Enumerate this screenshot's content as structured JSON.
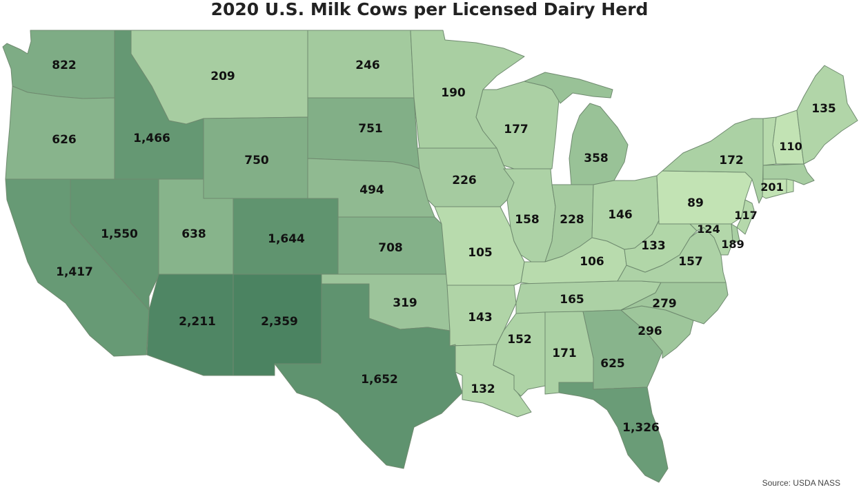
{
  "title": "2020 U.S. Milk Cows per Licensed Dairy Herd",
  "source": "Source: USDA NASS",
  "colors": {
    "scale_low": "#c2e3b4",
    "scale_high": "#4b8361",
    "border": "#6f8a6f",
    "text": "#111111"
  },
  "states": {
    "WA": {
      "label": "822",
      "value": 822
    },
    "OR": {
      "label": "626",
      "value": 626
    },
    "CA": {
      "label": "1,417",
      "value": 1417
    },
    "ID": {
      "label": "1,466",
      "value": 1466
    },
    "NV": {
      "label": "1,550",
      "value": 1550
    },
    "MT": {
      "label": "209",
      "value": 209
    },
    "WY": {
      "label": "750",
      "value": 750
    },
    "UT": {
      "label": "638",
      "value": 638
    },
    "CO": {
      "label": "1,644",
      "value": 1644
    },
    "AZ": {
      "label": "2,211",
      "value": 2211
    },
    "NM": {
      "label": "2,359",
      "value": 2359
    },
    "ND": {
      "label": "246",
      "value": 246
    },
    "SD": {
      "label": "751",
      "value": 751
    },
    "NE": {
      "label": "494",
      "value": 494
    },
    "KS": {
      "label": "708",
      "value": 708
    },
    "OK": {
      "label": "319",
      "value": 319
    },
    "TX": {
      "label": "1,652",
      "value": 1652
    },
    "MN": {
      "label": "190",
      "value": 190
    },
    "IA": {
      "label": "226",
      "value": 226
    },
    "MO": {
      "label": "105",
      "value": 105
    },
    "AR": {
      "label": "143",
      "value": 143
    },
    "LA": {
      "label": "132",
      "value": 132
    },
    "WI": {
      "label": "177",
      "value": 177
    },
    "IL": {
      "label": "158",
      "value": 158
    },
    "MI": {
      "label": "358",
      "value": 358
    },
    "IN": {
      "label": "228",
      "value": 228
    },
    "OH": {
      "label": "146",
      "value": 146
    },
    "KY": {
      "label": "106",
      "value": 106
    },
    "TN": {
      "label": "165",
      "value": 165
    },
    "MS": {
      "label": "152",
      "value": 152
    },
    "AL": {
      "label": "171",
      "value": 171
    },
    "GA": {
      "label": "625",
      "value": 625
    },
    "FL": {
      "label": "1,326",
      "value": 1326
    },
    "SC": {
      "label": "296",
      "value": 296
    },
    "NC": {
      "label": "279",
      "value": 279
    },
    "VA": {
      "label": "157",
      "value": 157
    },
    "WV": {
      "label": "133",
      "value": 133
    },
    "PA": {
      "label": "89",
      "value": 89
    },
    "NY": {
      "label": "172",
      "value": 172
    },
    "VT": {
      "label": "110",
      "value": 110
    },
    "ME": {
      "label": "135",
      "value": 135
    },
    "MA": {
      "label": "201",
      "value": 201
    },
    "NJ": {
      "label": "117",
      "value": 117
    },
    "MD": {
      "label": "124",
      "value": 124
    },
    "DE": {
      "label": "189",
      "value": 189
    }
  }
}
